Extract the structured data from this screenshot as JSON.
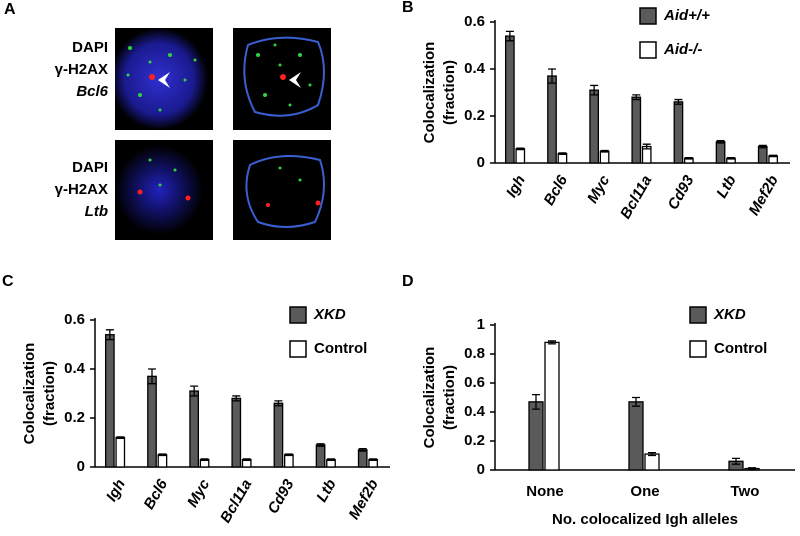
{
  "panel_a": {
    "label": "A",
    "rows": [
      {
        "lines": [
          "DAPI",
          "γ-H2AX",
          "Bcl6"
        ]
      },
      {
        "lines": [
          "DAPI",
          "γ-H2AX",
          "Ltb"
        ]
      }
    ]
  },
  "chart_data": [
    {
      "type": "bar",
      "panel": "B",
      "ylabel": [
        "Colocalization",
        "(fraction)"
      ],
      "categories": [
        "Igh",
        "Bcl6",
        "Myc",
        "Bcl11a",
        "Cd93",
        "Ltb",
        "Mef2b"
      ],
      "ylim": [
        0,
        0.6
      ],
      "yticks": [
        0,
        0.2,
        0.4,
        0.6
      ],
      "series": [
        {
          "name": "Aid+/+",
          "italic": true,
          "color": "#5a5a5a",
          "values": [
            0.54,
            0.37,
            0.31,
            0.28,
            0.26,
            0.09,
            0.07
          ],
          "errors": [
            0.02,
            0.03,
            0.02,
            0.01,
            0.01,
            0.005,
            0.005
          ]
        },
        {
          "name": "Aid-/-",
          "italic": true,
          "color": "#ffffff",
          "values": [
            0.06,
            0.04,
            0.05,
            0.07,
            0.02,
            0.02,
            0.03
          ],
          "errors": [
            0.003,
            0.003,
            0.003,
            0.01,
            0.003,
            0.003,
            0.003
          ]
        }
      ]
    },
    {
      "type": "bar",
      "panel": "C",
      "ylabel": [
        "Colocalization",
        "(fraction)"
      ],
      "categories": [
        "Igh",
        "Bcl6",
        "Myc",
        "Bcl11a",
        "Cd93",
        "Ltb",
        "Mef2b"
      ],
      "ylim": [
        0,
        0.6
      ],
      "yticks": [
        0,
        0.2,
        0.4,
        0.6
      ],
      "series": [
        {
          "name": "XKD",
          "italic": true,
          "color": "#5a5a5a",
          "values": [
            0.54,
            0.37,
            0.31,
            0.28,
            0.26,
            0.09,
            0.07
          ],
          "errors": [
            0.02,
            0.03,
            0.02,
            0.01,
            0.01,
            0.005,
            0.005
          ]
        },
        {
          "name": "Control",
          "italic": false,
          "color": "#ffffff",
          "values": [
            0.12,
            0.05,
            0.03,
            0.03,
            0.05,
            0.03,
            0.03
          ],
          "errors": [
            0.003,
            0.003,
            0.003,
            0.003,
            0.003,
            0.003,
            0.003
          ]
        }
      ]
    },
    {
      "type": "bar",
      "panel": "D",
      "ylabel": [
        "Colocalization",
        "(fraction)"
      ],
      "xlabel": "No. colocalized Igh alleles",
      "categories": [
        "None",
        "One",
        "Two"
      ],
      "ylim": [
        0,
        1
      ],
      "yticks": [
        0,
        0.2,
        0.4,
        0.6,
        0.8,
        1
      ],
      "series": [
        {
          "name": "XKD",
          "italic": true,
          "color": "#5a5a5a",
          "values": [
            0.47,
            0.47,
            0.06
          ],
          "errors": [
            0.05,
            0.03,
            0.02
          ]
        },
        {
          "name": "Control",
          "italic": false,
          "color": "#ffffff",
          "values": [
            0.88,
            0.11,
            0.01
          ],
          "errors": [
            0.01,
            0.01,
            0.005
          ]
        }
      ]
    }
  ]
}
